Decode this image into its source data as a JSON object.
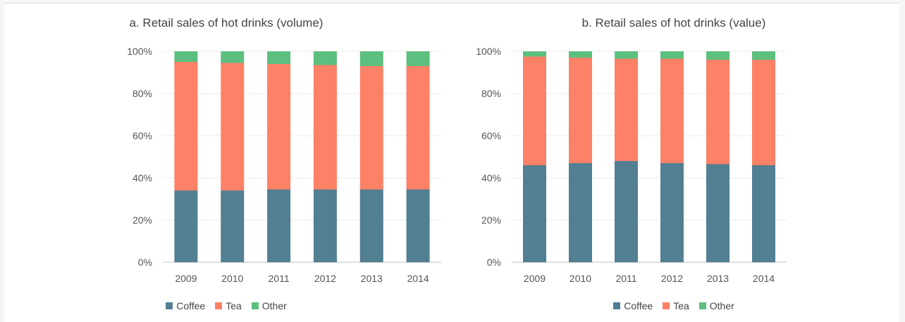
{
  "colors": {
    "coffee": "#527f92",
    "tea": "#fc8166",
    "other": "#5cbf7f"
  },
  "legend": [
    "Coffee",
    "Tea",
    "Other"
  ],
  "chart_data": [
    {
      "type": "bar",
      "stacked": true,
      "title": "a. Retail sales of hot drinks (volume)",
      "categories": [
        "2009",
        "2010",
        "2011",
        "2012",
        "2013",
        "2014"
      ],
      "series": [
        {
          "name": "Coffee",
          "values": [
            34,
            34,
            34.5,
            34.5,
            34.5,
            34.5
          ]
        },
        {
          "name": "Tea",
          "values": [
            61,
            60.5,
            59.5,
            59,
            58.5,
            58.5
          ]
        },
        {
          "name": "Other",
          "values": [
            5,
            5.5,
            6,
            6.5,
            7,
            7
          ]
        }
      ],
      "ylim": [
        0,
        100
      ],
      "yticks": [
        "0%",
        "20%",
        "40%",
        "60%",
        "80%",
        "100%"
      ],
      "grid": true,
      "legend_position": "bottom"
    },
    {
      "type": "bar",
      "stacked": true,
      "title": "b. Retail sales of hot drinks (value)",
      "categories": [
        "2009",
        "2010",
        "2011",
        "2012",
        "2013",
        "2014"
      ],
      "series": [
        {
          "name": "Coffee",
          "values": [
            46,
            47,
            48,
            47,
            46.5,
            46
          ]
        },
        {
          "name": "Tea",
          "values": [
            51.5,
            50,
            48.5,
            49.5,
            49.5,
            50
          ]
        },
        {
          "name": "Other",
          "values": [
            2.5,
            3,
            3.5,
            3.5,
            4,
            4
          ]
        }
      ],
      "ylim": [
        0,
        100
      ],
      "yticks": [
        "0%",
        "20%",
        "40%",
        "60%",
        "80%",
        "100%"
      ],
      "grid": true,
      "legend_position": "bottom"
    }
  ]
}
